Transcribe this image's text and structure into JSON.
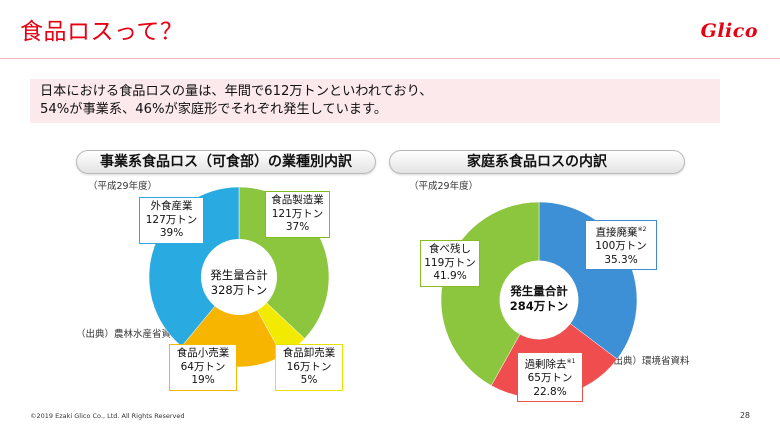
{
  "header": {
    "title": "食品ロスって？",
    "logo_text": "Glico",
    "brand_color": "#e60012"
  },
  "summary": {
    "line1": "日本における食品ロスの量は、年間で612万トンといわれており、",
    "line2": "54%が事業系、46%が家庭形でそれぞれ発生しています。"
  },
  "left_panel": {
    "header": "事業系食品ロス（可食部）の業種別内訳",
    "year_note": "（平成29年度）",
    "source_note": "（出典）農林水産省資料",
    "center_line1": "発生量合計",
    "center_line2": "328万トン"
  },
  "right_panel": {
    "header": "家庭系食品ロスの内訳",
    "year_note": "（平成29年度）",
    "source_note": "（出典）環境省資料",
    "center_line1": "発生量合計",
    "center_line2": "284万トン"
  },
  "chart_data": [
    {
      "type": "pie",
      "title": "事業系食品ロス（可食部）の業種別内訳",
      "total_label": "328万トン",
      "slices": [
        {
          "label": "食品製造業",
          "amount": "121万トン",
          "percent_label": "37%",
          "value": 37,
          "color": "#8cc63f"
        },
        {
          "label": "食品卸売業",
          "amount": "16万トン",
          "percent_label": "5%",
          "value": 5,
          "color": "#f2ea00"
        },
        {
          "label": "食品小売業",
          "amount": "64万トン",
          "percent_label": "19%",
          "value": 19,
          "color": "#f8b500"
        },
        {
          "label": "外食産業",
          "amount": "127万トン",
          "percent_label": "39%",
          "value": 39,
          "color": "#29abe2"
        }
      ]
    },
    {
      "type": "pie",
      "title": "家庭系食品ロスの内訳",
      "total_label": "284万トン",
      "slices": [
        {
          "label": "直接廃棄",
          "note": "※2",
          "amount": "100万トン",
          "percent_label": "35.3%",
          "value": 35.3,
          "color": "#3d8fd6"
        },
        {
          "label": "過剰除去",
          "note": "※1",
          "amount": "65万トン",
          "percent_label": "22.8%",
          "value": 22.8,
          "color": "#f04e4e"
        },
        {
          "label": "食べ残し",
          "note": "",
          "amount": "119万トン",
          "percent_label": "41.9%",
          "value": 41.9,
          "color": "#8cc63f"
        }
      ]
    }
  ],
  "footer": {
    "copyright": "©2019 Ezaki Glico Co., Ltd. All Rights Reserved",
    "page_number": "28"
  }
}
